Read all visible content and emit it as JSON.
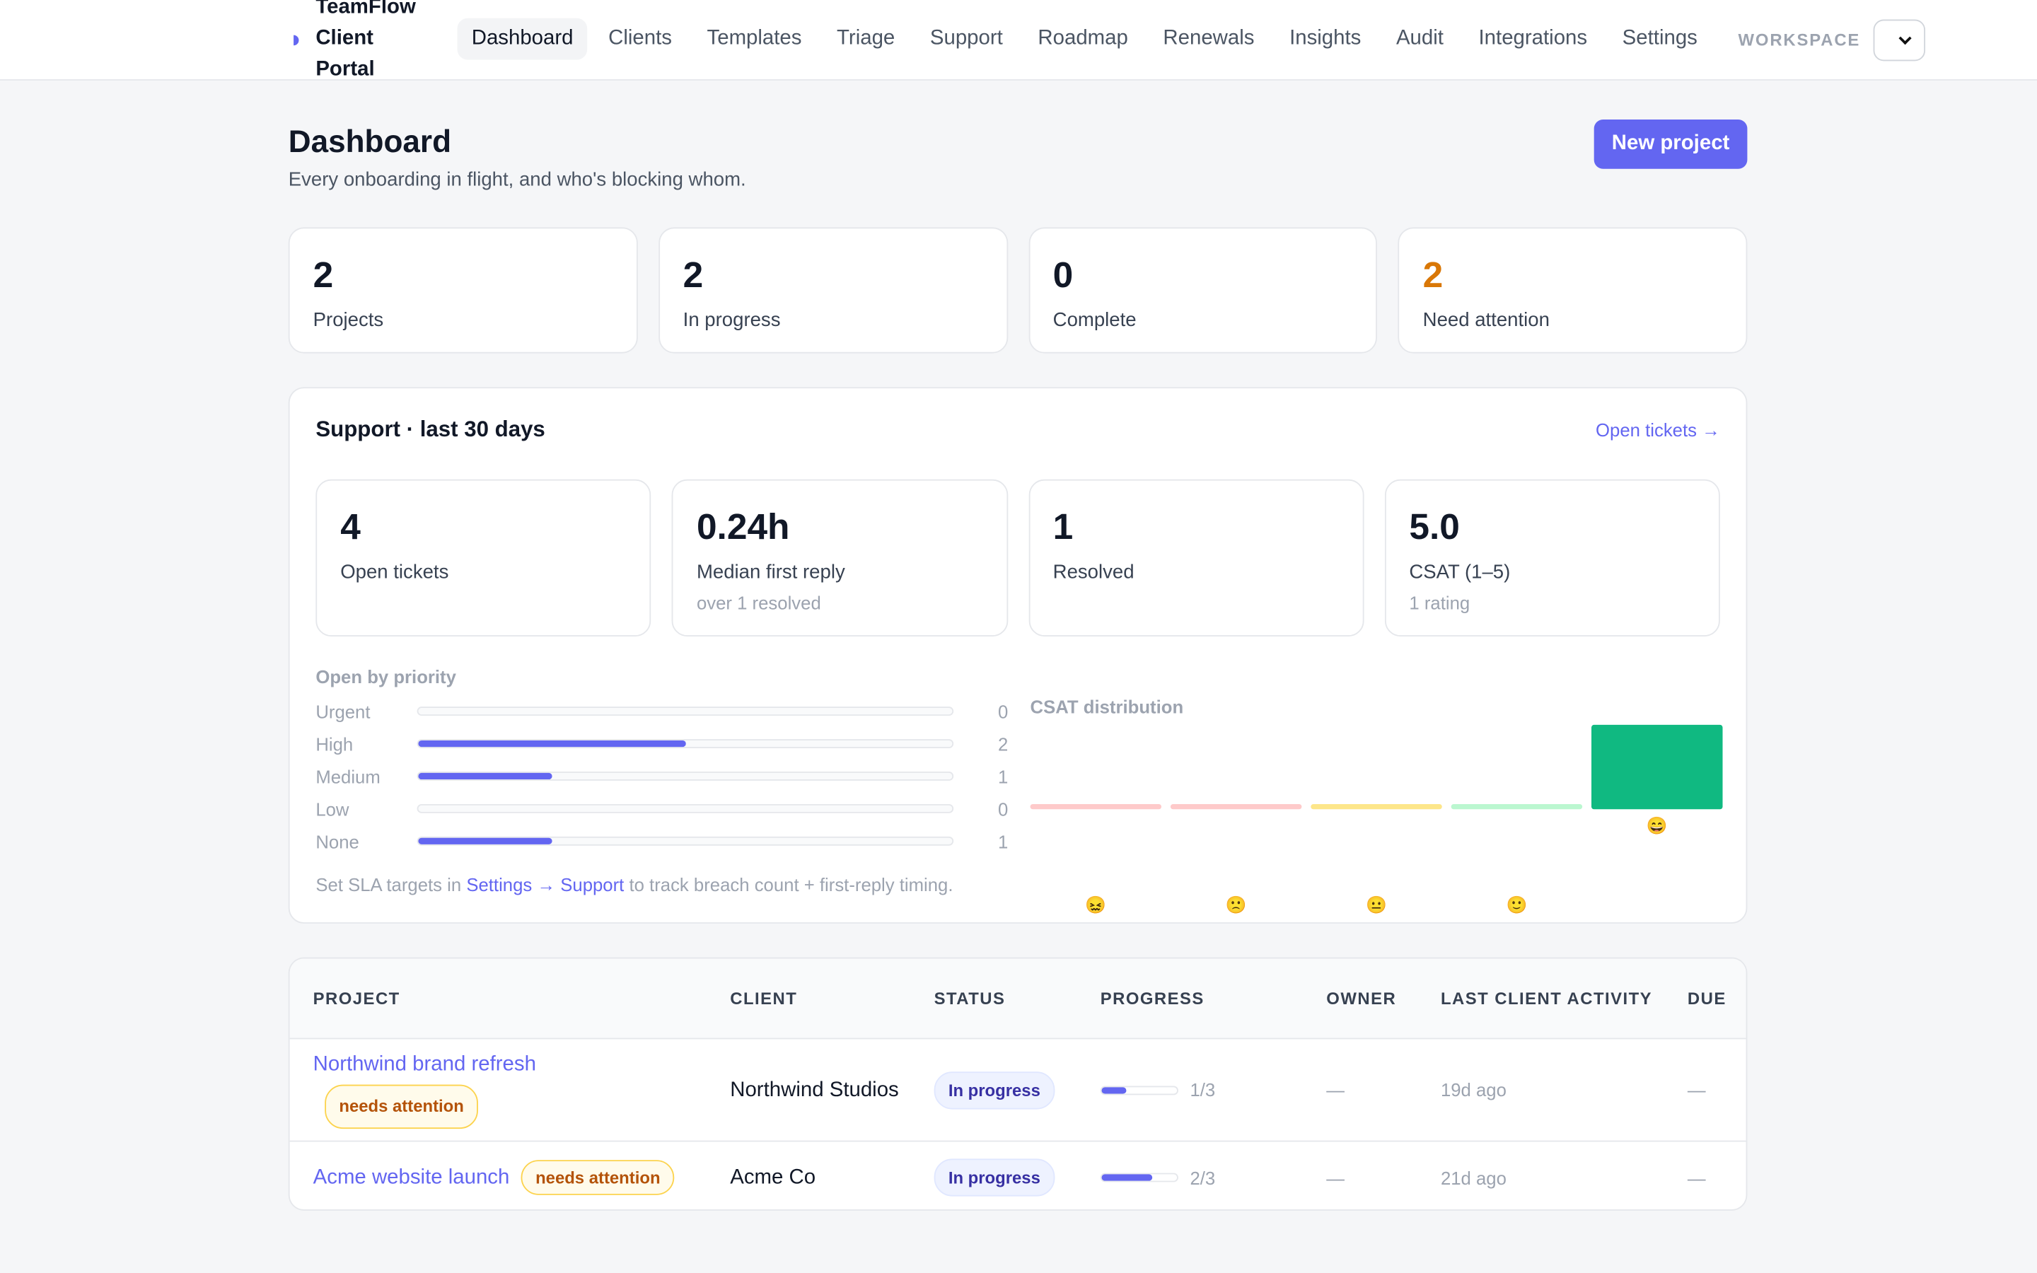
{
  "nav": {
    "brand": "TeamFlow Client Portal",
    "links": [
      "Dashboard",
      "Clients",
      "Templates",
      "Triage",
      "Support",
      "Roadmap",
      "Renewals",
      "Insights",
      "Audit",
      "Integrations",
      "Settings"
    ],
    "workspace_label": "WORKSPACE"
  },
  "header": {
    "title": "Dashboard",
    "subtitle": "Every onboarding in flight, and who's blocking whom.",
    "button": "New project"
  },
  "stats": [
    {
      "value": 2,
      "label": "Projects"
    },
    {
      "value": 2,
      "label": "In progress"
    },
    {
      "value": 0,
      "label": "Complete"
    },
    {
      "value": 2,
      "label": "Need attention",
      "color": "#d97706"
    }
  ],
  "support": {
    "title": "Support · last 30 days",
    "link": "Open tickets →",
    "stats": [
      {
        "value": 4,
        "label": "Open tickets"
      },
      {
        "value": "0.24h",
        "label": "Median first reply",
        "note": "over 1 resolved"
      },
      {
        "value": 1,
        "label": "Resolved"
      },
      {
        "value": "5.0",
        "label": "CSAT (1–5)",
        "note": "1 rating"
      }
    ],
    "priority": {
      "title": "Open by priority",
      "color": "#6366f1",
      "rows": [
        {
          "label": "Urgent",
          "value": 0
        },
        {
          "label": "High",
          "value": 2
        },
        {
          "label": "Medium",
          "value": 1
        },
        {
          "label": "Low",
          "value": 0
        },
        {
          "label": "None",
          "value": 1
        }
      ]
    },
    "sla_note": {
      "before": "Set SLA targets in",
      "link": "Settings → Support",
      "after": "to track breach count + first-reply timing."
    },
    "csat": {
      "title": "CSAT distribution",
      "buckets": [
        {
          "label": "😖",
          "count": 0,
          "color": "#fecaca"
        },
        {
          "label": "🙁",
          "count": 0,
          "color": "#fecaca"
        },
        {
          "label": "😐",
          "count": 0,
          "color": "#fde68a"
        },
        {
          "label": "🙂",
          "count": 0,
          "color": "#bbf7d0"
        },
        {
          "label": "😄",
          "count": 1,
          "color": "#10b981"
        }
      ]
    }
  },
  "table": {
    "columns": [
      "PROJECT",
      "CLIENT",
      "STATUS",
      "PROGRESS",
      "OWNER",
      "LAST CLIENT ACTIVITY",
      "DUE"
    ],
    "rows": [
      {
        "project": "Northwind brand refresh",
        "badge": "needs attention",
        "client": "Northwind Studios",
        "status": "In progress",
        "progress": "1/3",
        "owner": "—",
        "activity": "19d ago",
        "due": "—"
      },
      {
        "project": "Acme website launch",
        "badge": "needs attention",
        "client": "Acme Co",
        "status": "In progress",
        "progress": "2/3",
        "owner": "—",
        "activity": "21d ago",
        "due": "—"
      }
    ]
  }
}
